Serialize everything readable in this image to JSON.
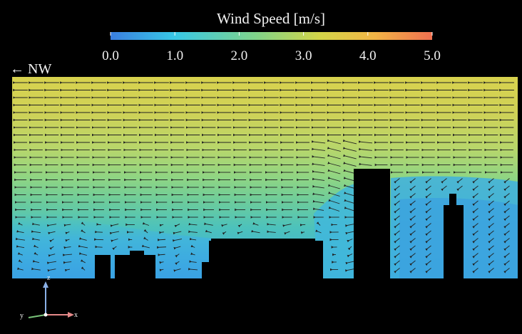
{
  "colorbar": {
    "title": "Wind Speed [m/s]",
    "ticks": [
      "0.0",
      "1.0",
      "2.0",
      "3.0",
      "4.0",
      "5.0"
    ],
    "min": 0,
    "max": 5,
    "colors": [
      "#3a7ee0",
      "#38c8e6",
      "#7fd38a",
      "#d3d548",
      "#f2b546",
      "#f07050"
    ]
  },
  "direction_label": "← NW",
  "axes": {
    "z": "z",
    "y": "y",
    "x": "x"
  }
}
